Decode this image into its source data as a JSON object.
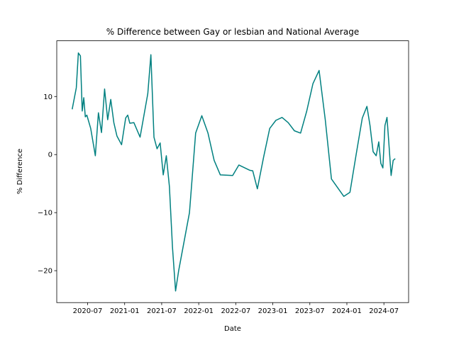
{
  "chart_data": {
    "type": "line",
    "title": "% Difference between Gay or lesbian and National Average",
    "xlabel": "Date",
    "ylabel": "% Difference",
    "x": [
      "2020-04",
      "2020-05",
      "2020-05",
      "2020-05",
      "2020-06",
      "2020-06",
      "2020-06",
      "2020-06",
      "2020-07",
      "2020-08",
      "2020-08",
      "2020-09",
      "2020-09",
      "2020-10",
      "2020-10",
      "2020-11",
      "2020-11",
      "2020-12",
      "2021-01",
      "2021-01",
      "2021-01",
      "2021-02",
      "2021-03",
      "2021-04",
      "2021-04",
      "2021-05",
      "2021-05",
      "2021-06",
      "2021-06",
      "2021-07",
      "2021-07",
      "2021-08",
      "2021-08",
      "2021-09",
      "2021-09",
      "2021-11",
      "2021-12",
      "2022-01",
      "2022-02",
      "2022-03",
      "2022-04",
      "2022-06",
      "2022-07",
      "2022-09",
      "2022-09",
      "2022-10",
      "2022-11",
      "2022-12",
      "2023-01",
      "2023-02",
      "2023-03",
      "2023-04",
      "2023-05",
      "2023-06",
      "2023-07",
      "2023-08",
      "2023-09",
      "2023-10",
      "2023-12",
      "2024-01",
      "2024-02",
      "2024-03",
      "2024-04",
      "2024-04",
      "2024-05",
      "2024-05",
      "2024-06",
      "2024-06",
      "2024-06",
      "2024-07",
      "2024-07",
      "2024-07",
      "2024-08",
      "2024-08",
      "2024-08"
    ],
    "series": [
      {
        "name": "% Difference",
        "color": "#008080",
        "values": [
          7.8,
          11.5,
          17.5,
          17,
          7.5,
          9.8,
          6.5,
          6.8,
          4.5,
          -0.2,
          7.2,
          3.8,
          11.3,
          6,
          9.5,
          5.5,
          3.2,
          1.7,
          6.3,
          6.8,
          5.4,
          5.5,
          3,
          7.5,
          10.5,
          17.2,
          3,
          1,
          2,
          -3.5,
          -0.2,
          -5.5,
          -16,
          -23.5,
          -20,
          -10,
          3.7,
          6.7,
          3.7,
          -1,
          -3.5,
          -3.6,
          -1.8,
          -2.7,
          -2.8,
          -5.9,
          -0.5,
          4.5,
          5.9,
          6.4,
          5.5,
          4.1,
          3.7,
          7.5,
          12.2,
          14.5,
          6,
          -4.2,
          -7.2,
          -6.5,
          0,
          6.3,
          8.3,
          5,
          0.5,
          -0.2,
          2.2,
          -1.5,
          -2.3,
          5,
          6.4,
          1.5,
          -3.6,
          -1,
          -0.7
        ]
      }
    ],
    "xlim": [
      "2020-02",
      "2024-11"
    ],
    "xticks": [
      "2020-07",
      "2021-01",
      "2021-07",
      "2022-01",
      "2022-07",
      "2023-01",
      "2023-07",
      "2024-01",
      "2024-07"
    ],
    "ylim": [
      -25.5,
      19.6
    ],
    "yticks": [
      {
        "value": -20,
        "label": "−20"
      },
      {
        "value": -10,
        "label": "−10"
      },
      0,
      10
    ],
    "grid": false
  }
}
